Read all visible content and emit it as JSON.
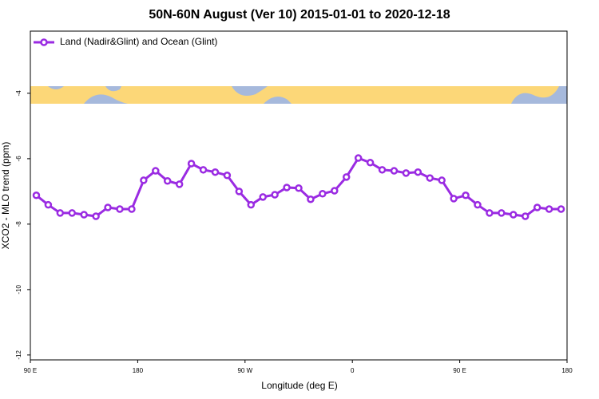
{
  "chart_data": {
    "type": "line",
    "title": "50N-60N August (Ver 10)   2015-01-01 to 2020-12-18",
    "xlabel": "Longitude (deg E)",
    "ylabel": "XCO2 - MLO trend (ppm)",
    "x": [
      95,
      105,
      115,
      125,
      135,
      145,
      155,
      165,
      175,
      185,
      195,
      205,
      215,
      225,
      235,
      245,
      255,
      265,
      275,
      285,
      295,
      305,
      315,
      325,
      335,
      345,
      355,
      365,
      375,
      385,
      395,
      405,
      415,
      425,
      435,
      445,
      455,
      465,
      475,
      485,
      495,
      505,
      515,
      525,
      535
    ],
    "series": [
      {
        "name": "Land (Nadir&Glint) and Ocean (Glint)",
        "color": "#9a2be2",
        "values": [
          -7.12,
          -7.41,
          -7.66,
          -7.66,
          -7.71,
          -7.76,
          -7.49,
          -7.54,
          -7.54,
          -6.66,
          -6.37,
          -6.68,
          -6.78,
          -6.15,
          -6.34,
          -6.41,
          -6.51,
          -7.0,
          -7.41,
          -7.17,
          -7.1,
          -6.88,
          -6.9,
          -7.24,
          -7.07,
          -6.98,
          -6.56,
          -5.98,
          -6.12,
          -6.34,
          -6.37,
          -6.44,
          -6.41,
          -6.59,
          -6.66,
          -7.22,
          -7.12,
          -7.41,
          -7.66,
          -7.66,
          -7.71,
          -7.76,
          -7.49,
          -7.54,
          -7.54
        ]
      }
    ],
    "xlim": [
      90,
      540
    ],
    "xticks": [
      {
        "value": 90,
        "label": "90 E"
      },
      180,
      {
        "value": 270,
        "label": "90 W"
      },
      {
        "value": 360,
        "label": "0"
      },
      {
        "value": 450,
        "label": "90 E"
      },
      {
        "value": 540,
        "label": "180"
      }
    ],
    "ylim": [
      -12.15,
      -2.1
    ],
    "yticks": [
      -12,
      -10,
      -8,
      -6,
      -4
    ],
    "legend": "top-left"
  }
}
